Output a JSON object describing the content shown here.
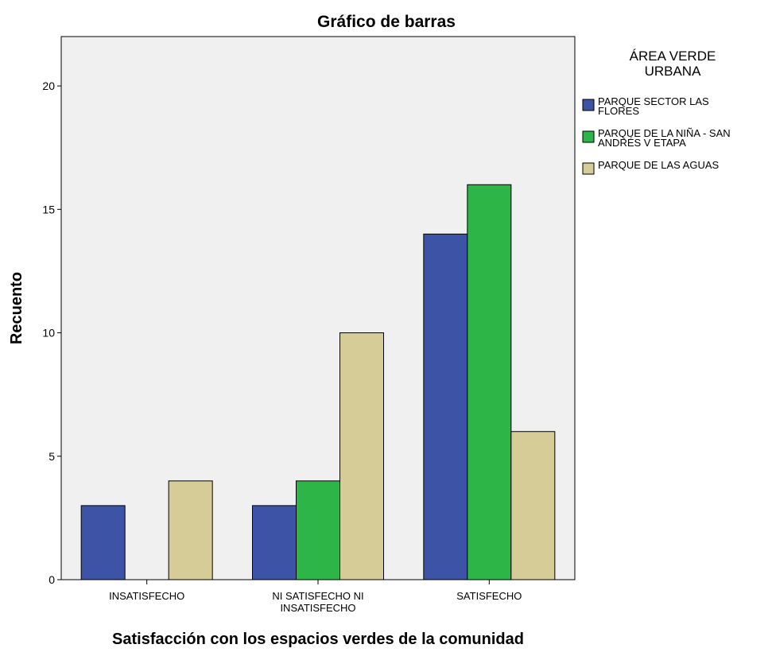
{
  "chart_data": {
    "type": "bar",
    "title": "Gráfico de barras",
    "xlabel": "Satisfacción con los espacios verdes de la comunidad",
    "ylabel": "Recuento",
    "categories": [
      [
        "INSATISFECHO"
      ],
      [
        "NI SATISFECHO NI",
        "INSATISFECHO"
      ],
      [
        "SATISFECHO"
      ]
    ],
    "ylim": [
      0,
      22
    ],
    "yticks": [
      "0",
      "5",
      "10",
      "15",
      "20"
    ],
    "grid": false,
    "legend": {
      "title": [
        "ÁREA VERDE",
        "URBANA"
      ],
      "placement": "right"
    },
    "series": [
      {
        "name": [
          "PARQUE SECTOR LAS",
          "FLORES"
        ],
        "color": "#3d54a6",
        "values": [
          3,
          3,
          14
        ]
      },
      {
        "name": [
          "PARQUE DE LA NIÑA - SAN",
          "ANDRÉS V ETAPA"
        ],
        "color": "#2eb548",
        "values": [
          0,
          4,
          16
        ]
      },
      {
        "name": [
          "PARQUE DE LAS AGUAS"
        ],
        "color": "#d5cc98",
        "values": [
          4,
          10,
          6
        ]
      }
    ]
  }
}
